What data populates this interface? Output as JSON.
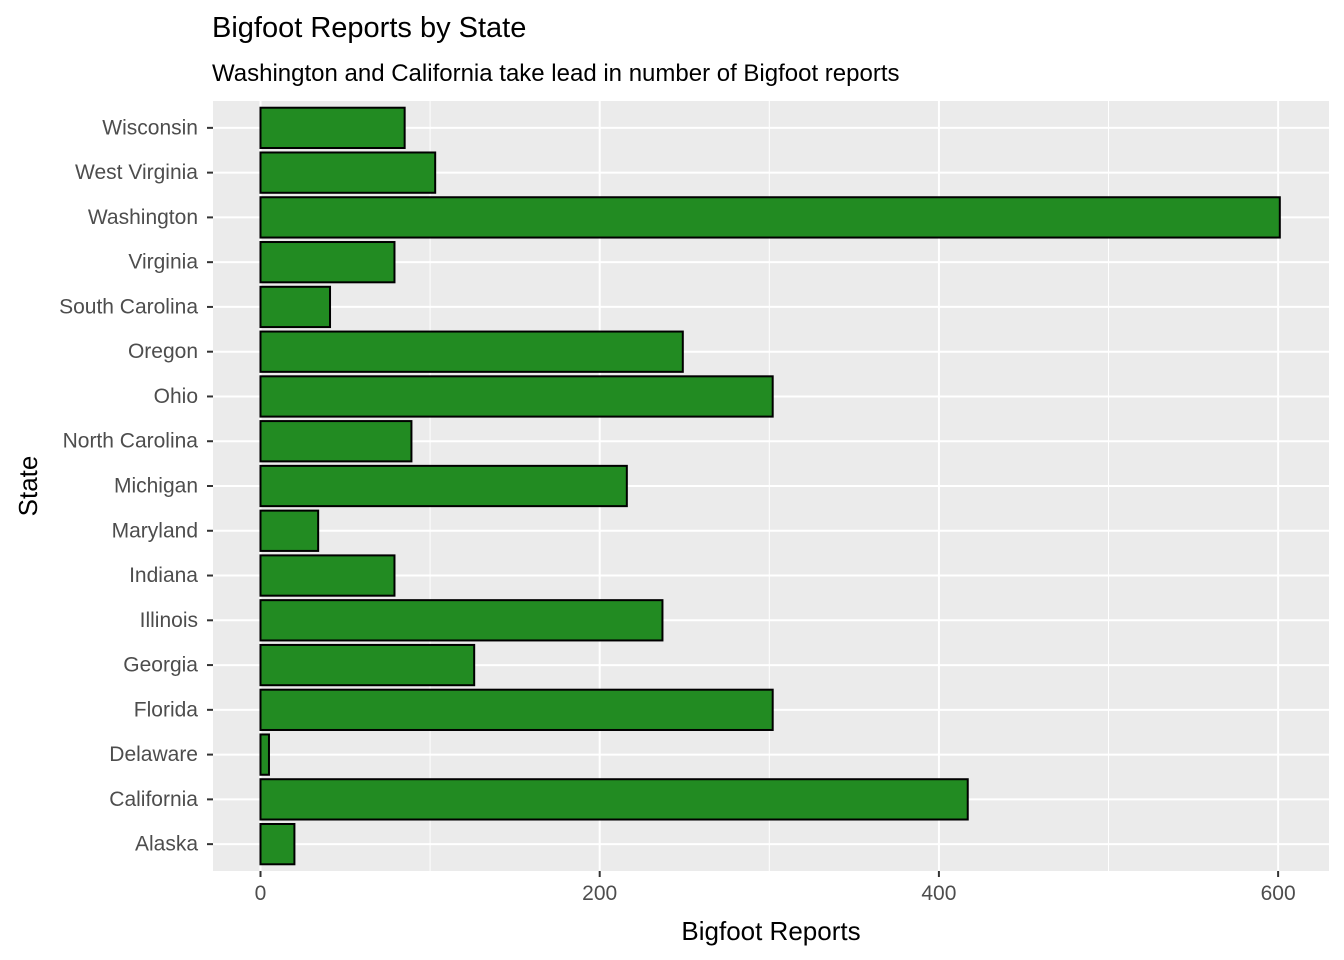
{
  "chart_data": {
    "type": "bar",
    "orientation": "horizontal",
    "title": "Bigfoot Reports by State",
    "subtitle": "Washington and California take lead in number of Bigfoot reports",
    "xlabel": "Bigfoot Reports",
    "ylabel": "State",
    "categories": [
      "Alaska",
      "California",
      "Delaware",
      "Florida",
      "Georgia",
      "Illinois",
      "Indiana",
      "Maryland",
      "Michigan",
      "North Carolina",
      "Ohio",
      "Oregon",
      "South Carolina",
      "Virginia",
      "Washington",
      "West Virginia",
      "Wisconsin"
    ],
    "values": [
      20,
      417,
      5,
      302,
      126,
      237,
      79,
      34,
      216,
      89,
      302,
      249,
      41,
      79,
      601,
      103,
      85
    ],
    "xlim": [
      -28,
      630
    ],
    "xticks": [
      0,
      200,
      400,
      600
    ],
    "grid": true,
    "colors": {
      "bar_fill": "#228B22",
      "bar_stroke": "#000000",
      "panel": "#EBEBEB",
      "grid": "#FFFFFF",
      "tick_label": "#4D4D4D",
      "text": "#000000"
    }
  }
}
